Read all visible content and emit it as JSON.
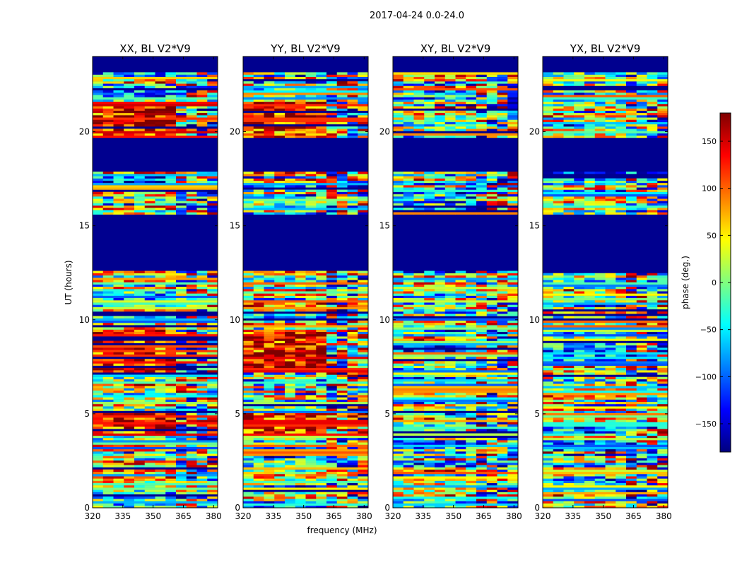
{
  "figure": {
    "suptitle": "2017-04-24 0.0-24.0",
    "xlabel": "frequency (MHz)",
    "ylabel": "UT (hours)"
  },
  "colorbar": {
    "label": "phase (deg.)",
    "range": [
      -180,
      180
    ],
    "ticks": [
      -150,
      -100,
      -50,
      0,
      50,
      100,
      150
    ],
    "tick_labels": [
      "−150",
      "−100",
      "−50",
      "0",
      "50",
      "100",
      "150"
    ],
    "colormap": "jet",
    "colormap_stops": [
      "#00007f",
      "#0000ff",
      "#007fff",
      "#00ffff",
      "#7fff7f",
      "#ffff00",
      "#ff7f00",
      "#ff0000",
      "#7f0000"
    ]
  },
  "chart_data": [
    {
      "type": "heatmap",
      "title": "XX, BL V2*V9",
      "xlim": [
        320,
        382
      ],
      "ylim": [
        0,
        24
      ],
      "xticks": [
        320,
        335,
        350,
        365,
        380
      ],
      "yticks": [
        0,
        5,
        10,
        15,
        20
      ],
      "flagged_ut_ranges": [
        [
          12.6,
          15.6
        ],
        [
          17.9,
          19.7
        ],
        [
          23.2,
          24.0
        ]
      ]
    },
    {
      "type": "heatmap",
      "title": "YY, BL V2*V9",
      "xlim": [
        320,
        382
      ],
      "ylim": [
        0,
        24
      ],
      "xticks": [
        320,
        335,
        350,
        365,
        380
      ],
      "yticks": [
        0,
        5,
        10,
        15,
        20
      ],
      "flagged_ut_ranges": [
        [
          12.6,
          15.6
        ],
        [
          17.9,
          19.7
        ],
        [
          23.2,
          24.0
        ]
      ]
    },
    {
      "type": "heatmap",
      "title": "XY, BL V2*V9",
      "xlim": [
        320,
        382
      ],
      "ylim": [
        0,
        24
      ],
      "xticks": [
        320,
        335,
        350,
        365,
        380
      ],
      "yticks": [
        0,
        5,
        10,
        15,
        20
      ],
      "flagged_ut_ranges": [
        [
          12.6,
          15.6
        ],
        [
          17.9,
          19.7
        ],
        [
          23.2,
          24.0
        ]
      ]
    },
    {
      "type": "heatmap",
      "title": "YX, BL V2*V9",
      "xlim": [
        320,
        382
      ],
      "ylim": [
        0,
        24
      ],
      "xticks": [
        320,
        335,
        350,
        365,
        380
      ],
      "yticks": [
        0,
        5,
        10,
        15,
        20
      ],
      "flagged_ut_ranges": [
        [
          12.6,
          15.6
        ],
        [
          17.9,
          19.7
        ],
        [
          23.2,
          24.0
        ]
      ]
    }
  ]
}
